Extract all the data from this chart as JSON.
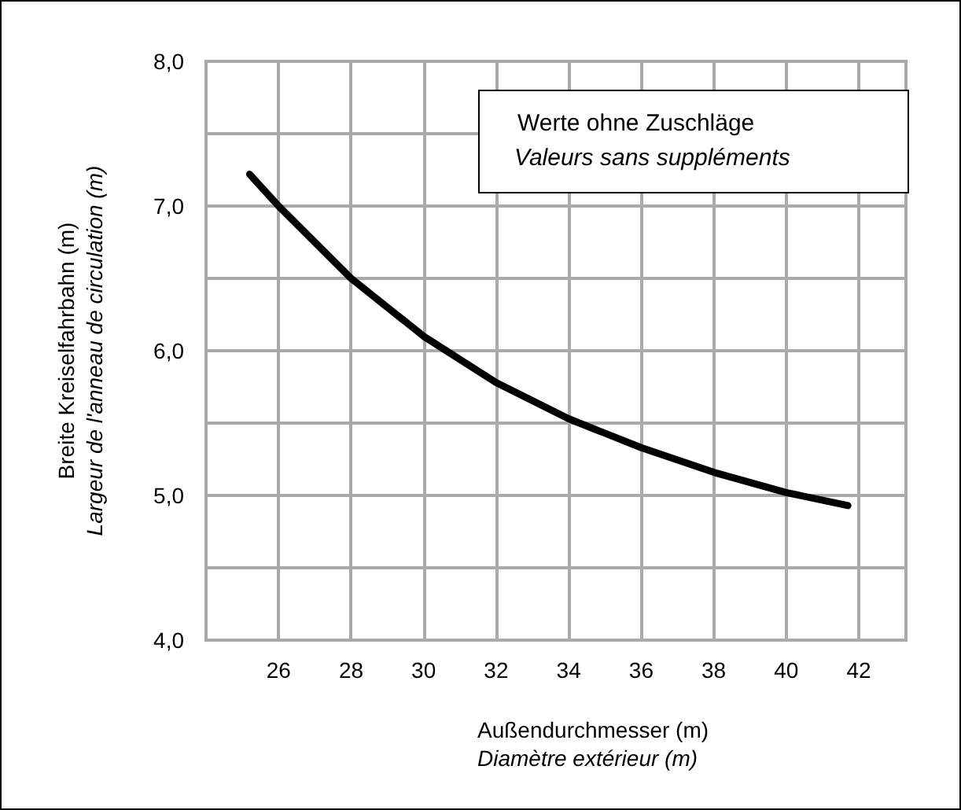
{
  "chart_data": {
    "type": "line",
    "xlabel": "Außendurchmesser (m)\nDiamètre extérieur (m)",
    "ylabel": "Breite Kreiselfahrbahn (m)\nLargeur de l'anneau de circulation (m)",
    "annotations": [
      "Werte ohne Zuschläge",
      "Valeurs sans suppléments"
    ],
    "x": [
      25.2,
      26,
      28,
      30,
      32,
      34,
      36,
      38,
      40,
      41.7
    ],
    "series": [
      {
        "color": "#000000",
        "values": [
          7.22,
          7.0,
          6.5,
          6.1,
          5.78,
          5.53,
          5.33,
          5.16,
          5.02,
          4.93
        ]
      }
    ],
    "xlim": [
      24,
      43.3
    ],
    "xticks": [
      26,
      28,
      30,
      32,
      34,
      36,
      38,
      40,
      42
    ],
    "ylim": [
      4,
      8
    ],
    "yticks": [
      {
        "value": 4,
        "label": "4,0"
      },
      {
        "value": 4.5,
        "label": null
      },
      {
        "value": 5,
        "label": "5,0"
      },
      {
        "value": 5.5,
        "label": null
      },
      {
        "value": 6,
        "label": "6,0"
      },
      {
        "value": 6.5,
        "label": null
      },
      {
        "value": 7,
        "label": "7,0"
      },
      {
        "value": 7.5,
        "label": null
      },
      {
        "value": 8,
        "label": "8,0"
      }
    ],
    "grid": true,
    "marker": "none",
    "line_style": "solid"
  }
}
